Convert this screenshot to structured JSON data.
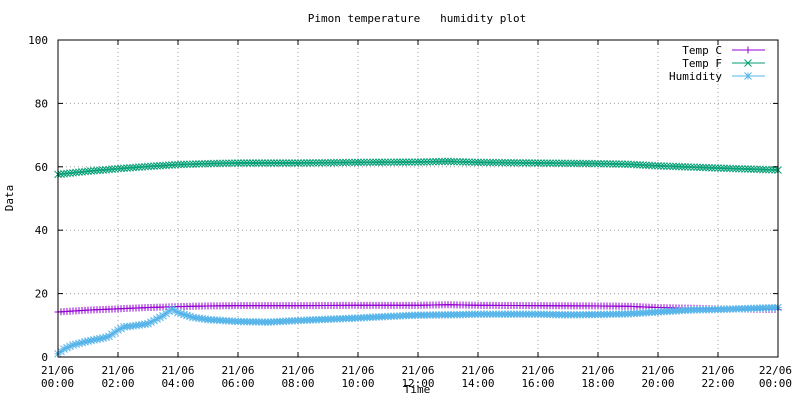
{
  "chart_data": {
    "type": "line",
    "title": "Pimon temperature   humidity plot",
    "xlabel": "Time",
    "ylabel": "Data",
    "ylim": [
      0,
      100
    ],
    "xlim_hours": [
      0,
      24
    ],
    "y_ticks": [
      "0",
      "20",
      "40",
      "60",
      "80",
      "100"
    ],
    "x_ticks": [
      {
        "h": 0,
        "date": "21/06",
        "time": "00:00"
      },
      {
        "h": 2,
        "date": "21/06",
        "time": "02:00"
      },
      {
        "h": 4,
        "date": "21/06",
        "time": "04:00"
      },
      {
        "h": 6,
        "date": "21/06",
        "time": "06:00"
      },
      {
        "h": 8,
        "date": "21/06",
        "time": "08:00"
      },
      {
        "h": 10,
        "date": "21/06",
        "time": "10:00"
      },
      {
        "h": 12,
        "date": "21/06",
        "time": "12:00"
      },
      {
        "h": 14,
        "date": "21/06",
        "time": "14:00"
      },
      {
        "h": 16,
        "date": "21/06",
        "time": "16:00"
      },
      {
        "h": 18,
        "date": "21/06",
        "time": "18:00"
      },
      {
        "h": 20,
        "date": "21/06",
        "time": "20:00"
      },
      {
        "h": 22,
        "date": "21/06",
        "time": "22:00"
      },
      {
        "h": 24,
        "date": "22/06",
        "time": "00:00"
      }
    ],
    "grid": true,
    "legend_position": "top-right",
    "series": [
      {
        "name": "Temp C",
        "color": "#9400d3",
        "marker": "plus",
        "points": [
          [
            0,
            14.2
          ],
          [
            1,
            14.8
          ],
          [
            2,
            15.2
          ],
          [
            3,
            15.6
          ],
          [
            4,
            15.9
          ],
          [
            5,
            16.1
          ],
          [
            6,
            16.2
          ],
          [
            8,
            16.2
          ],
          [
            10,
            16.3
          ],
          [
            12,
            16.3
          ],
          [
            13,
            16.5
          ],
          [
            14,
            16.3
          ],
          [
            16,
            16.2
          ],
          [
            18,
            16.1
          ],
          [
            19,
            16.0
          ],
          [
            20,
            15.6
          ],
          [
            22,
            15.2
          ],
          [
            24,
            15.0
          ]
        ]
      },
      {
        "name": "Temp F",
        "color": "#009e73",
        "marker": "x",
        "points": [
          [
            0,
            57.6
          ],
          [
            1,
            58.6
          ],
          [
            2,
            59.4
          ],
          [
            3,
            60.1
          ],
          [
            4,
            60.7
          ],
          [
            5,
            61.0
          ],
          [
            6,
            61.2
          ],
          [
            8,
            61.2
          ],
          [
            10,
            61.4
          ],
          [
            12,
            61.5
          ],
          [
            13,
            61.7
          ],
          [
            14,
            61.4
          ],
          [
            16,
            61.2
          ],
          [
            18,
            61.0
          ],
          [
            19,
            60.8
          ],
          [
            20,
            60.3
          ],
          [
            22,
            59.6
          ],
          [
            24,
            59.0
          ]
        ]
      },
      {
        "name": "Humidity",
        "color": "#56b4e9",
        "marker": "star",
        "points": [
          [
            0,
            1.0
          ],
          [
            0.2,
            2.5
          ],
          [
            0.5,
            3.8
          ],
          [
            1,
            5.0
          ],
          [
            1.5,
            6.0
          ],
          [
            1.7,
            6.5
          ],
          [
            2,
            8.5
          ],
          [
            2.2,
            9.5
          ],
          [
            2.5,
            9.8
          ],
          [
            3,
            10.5
          ],
          [
            3.5,
            13.0
          ],
          [
            3.8,
            15.2
          ],
          [
            4,
            14.0
          ],
          [
            4.5,
            12.5
          ],
          [
            5,
            11.8
          ],
          [
            6,
            11.2
          ],
          [
            7,
            11.0
          ],
          [
            8,
            11.5
          ],
          [
            9,
            11.9
          ],
          [
            10,
            12.3
          ],
          [
            11,
            12.8
          ],
          [
            12,
            13.2
          ],
          [
            13,
            13.3
          ],
          [
            14,
            13.5
          ],
          [
            15,
            13.5
          ],
          [
            16,
            13.5
          ],
          [
            17,
            13.3
          ],
          [
            18,
            13.4
          ],
          [
            19,
            13.6
          ],
          [
            20,
            14.2
          ],
          [
            21,
            14.8
          ],
          [
            22,
            15.0
          ],
          [
            23,
            15.3
          ],
          [
            24,
            15.6
          ]
        ]
      }
    ]
  }
}
